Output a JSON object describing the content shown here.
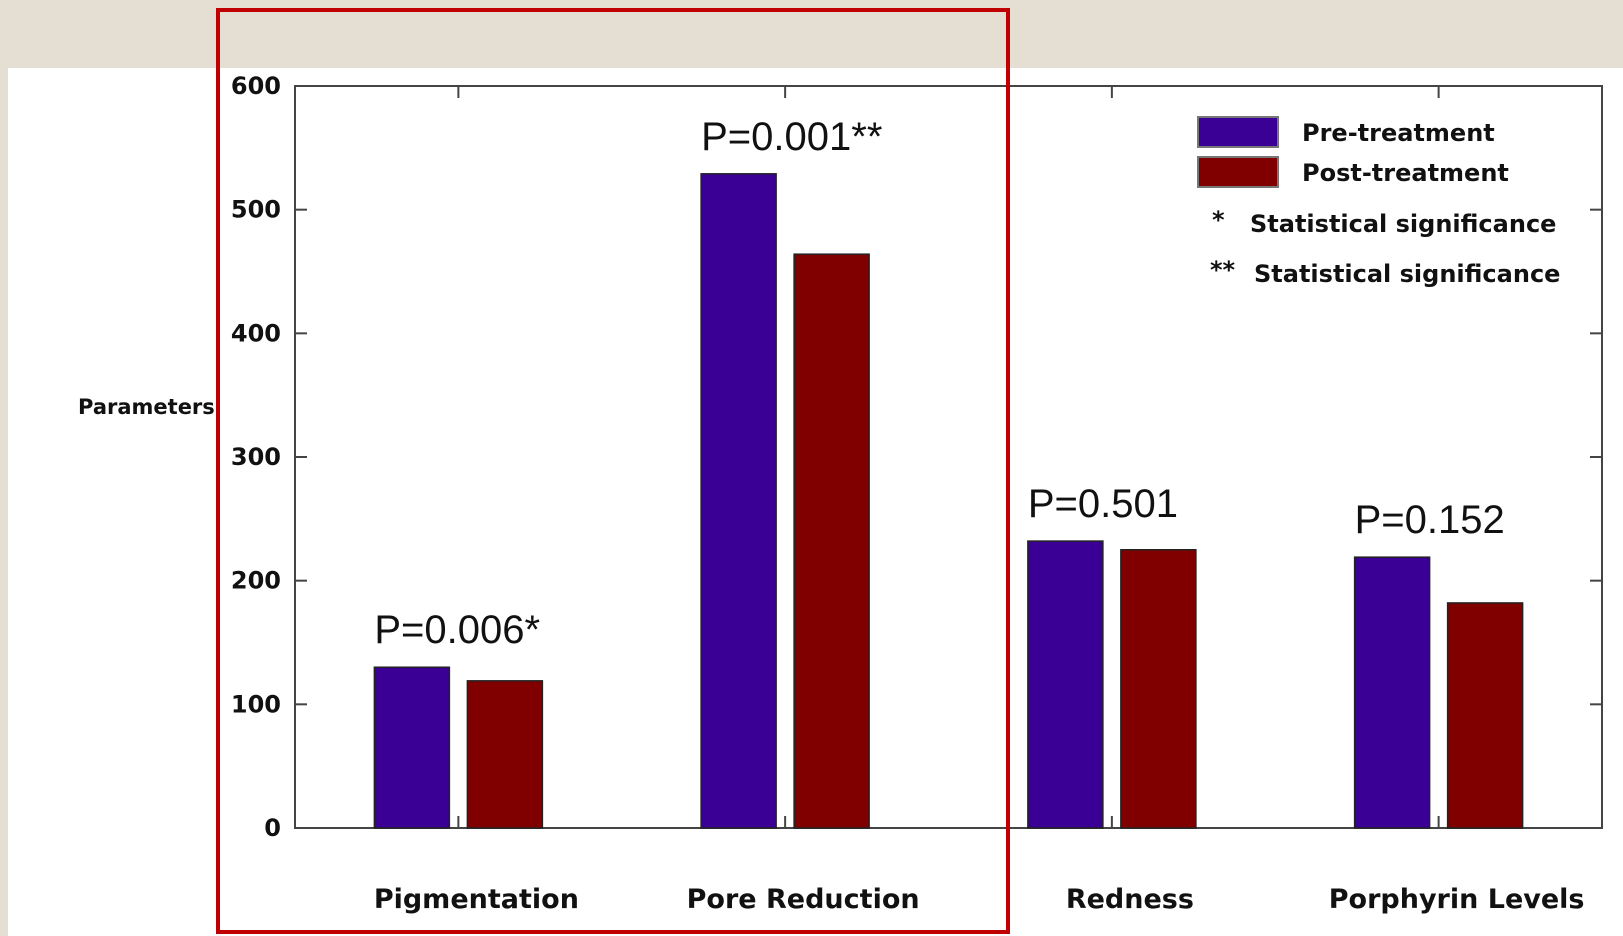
{
  "colors": {
    "pre": "#3a0096",
    "post": "#800000",
    "highlight": "#c00000",
    "background": "#e5ded3"
  },
  "chart_data": {
    "type": "bar",
    "categories": [
      "Pigmentation",
      "Pore Reduction",
      "Redness",
      "Porphyrin Levels"
    ],
    "series": [
      {
        "name": "Pre-treatment",
        "values": [
          130,
          529,
          232,
          219
        ]
      },
      {
        "name": "Post-treatment",
        "values": [
          119,
          464,
          225,
          182
        ]
      }
    ],
    "p_values": [
      "P=0.006*",
      "P=0.001**",
      "P=0.501",
      "P=0.152"
    ],
    "ylabel": "Parameters",
    "xlabel": "",
    "ylim": [
      0,
      600
    ],
    "yticks": [
      0,
      100,
      200,
      300,
      400,
      500,
      600
    ],
    "legend": {
      "position": "top-right",
      "notes": [
        {
          "symbol": "*",
          "text": "Statistical significance"
        },
        {
          "symbol": "**",
          "text": "Statistical significance"
        }
      ]
    },
    "grid": false
  }
}
